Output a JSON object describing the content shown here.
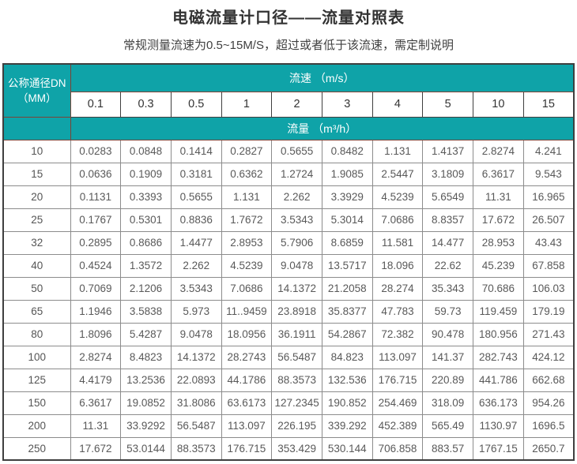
{
  "header": {
    "title": "电磁流量计口径——流量对照表",
    "subtitle": "常规测量流速为0.5~15M/S，超过或者低于该流速，需定制说明"
  },
  "colors": {
    "header_teal": "#0fa3a8",
    "header_border_brown": "#7d4336",
    "data_border_gray": "#8c8c8c",
    "outer_border": "#3f3f3f",
    "data_text": "#595959"
  },
  "table": {
    "corner_line1": "公称通径DN",
    "corner_line2": "（MM）",
    "velocity_header": "流速 （m/s）",
    "flow_header": "流量 （m³/h）",
    "velocities": [
      "0.1",
      "0.3",
      "0.5",
      "1",
      "2",
      "3",
      "4",
      "5",
      "10",
      "15"
    ],
    "rows": [
      {
        "dn": "10",
        "values": [
          "0.0283",
          "0.0848",
          "0.1414",
          "0.2827",
          "0.5655",
          "0.8482",
          "1.131",
          "1.4137",
          "2.8274",
          "4.241"
        ]
      },
      {
        "dn": "15",
        "values": [
          "0.0636",
          "0.1909",
          "0.3181",
          "0.6362",
          "1.2724",
          "1.9085",
          "2.5447",
          "3.1809",
          "6.3617",
          "9.543"
        ]
      },
      {
        "dn": "20",
        "values": [
          "0.1131",
          "0.3393",
          "0.5655",
          "1.131",
          "2.262",
          "3.3929",
          "4.5239",
          "5.6549",
          "11.31",
          "16.965"
        ]
      },
      {
        "dn": "25",
        "values": [
          "0.1767",
          "0.5301",
          "0.8836",
          "1.7672",
          "3.5343",
          "5.3014",
          "7.0686",
          "8.8357",
          "17.672",
          "26.507"
        ]
      },
      {
        "dn": "32",
        "values": [
          "0.2895",
          "0.8686",
          "1.4477",
          "2.8953",
          "5.7906",
          "8.6859",
          "11.581",
          "14.477",
          "28.953",
          "43.43"
        ]
      },
      {
        "dn": "40",
        "values": [
          "0.4524",
          "1.3572",
          "2.262",
          "4.5239",
          "9.0478",
          "13.5717",
          "18.096",
          "22.62",
          "45.239",
          "67.858"
        ]
      },
      {
        "dn": "50",
        "values": [
          "0.7069",
          "2.1206",
          "3.5343",
          "7.0686",
          "14.1372",
          "21.2058",
          "28.274",
          "35.343",
          "70.686",
          "106.03"
        ]
      },
      {
        "dn": "65",
        "values": [
          "1.1946",
          "3.5838",
          "5.973",
          "11..9459",
          "23.8918",
          "35.8377",
          "47.783",
          "59.73",
          "119.459",
          "179.19"
        ]
      },
      {
        "dn": "80",
        "values": [
          "1.8096",
          "5.4287",
          "9.0478",
          "18.0956",
          "36.1911",
          "54.2867",
          "72.382",
          "90.478",
          "180.956",
          "271.43"
        ]
      },
      {
        "dn": "100",
        "values": [
          "2.8274",
          "8.4823",
          "14.1372",
          "28.2743",
          "56.5487",
          "84.823",
          "113.097",
          "141.37",
          "282.743",
          "424.12"
        ]
      },
      {
        "dn": "125",
        "values": [
          "4.4179",
          "13.2536",
          "22.0893",
          "44.1786",
          "88.3573",
          "132.536",
          "176.715",
          "220.89",
          "441.786",
          "662.68"
        ]
      },
      {
        "dn": "150",
        "values": [
          "6.3617",
          "19.0852",
          "31.8086",
          "63.6173",
          "127.2345",
          "190.852",
          "254.469",
          "318.09",
          "636.173",
          "954.26"
        ]
      },
      {
        "dn": "200",
        "values": [
          "11.31",
          "33.9292",
          "56.5487",
          "113.097",
          "226.195",
          "339.292",
          "452.389",
          "565.49",
          "1130.97",
          "1696.5"
        ]
      },
      {
        "dn": "250",
        "values": [
          "17.672",
          "53.0144",
          "88.3573",
          "176.715",
          "353.429",
          "530.144",
          "706.858",
          "883.57",
          "1767.15",
          "2650.7"
        ]
      }
    ]
  }
}
